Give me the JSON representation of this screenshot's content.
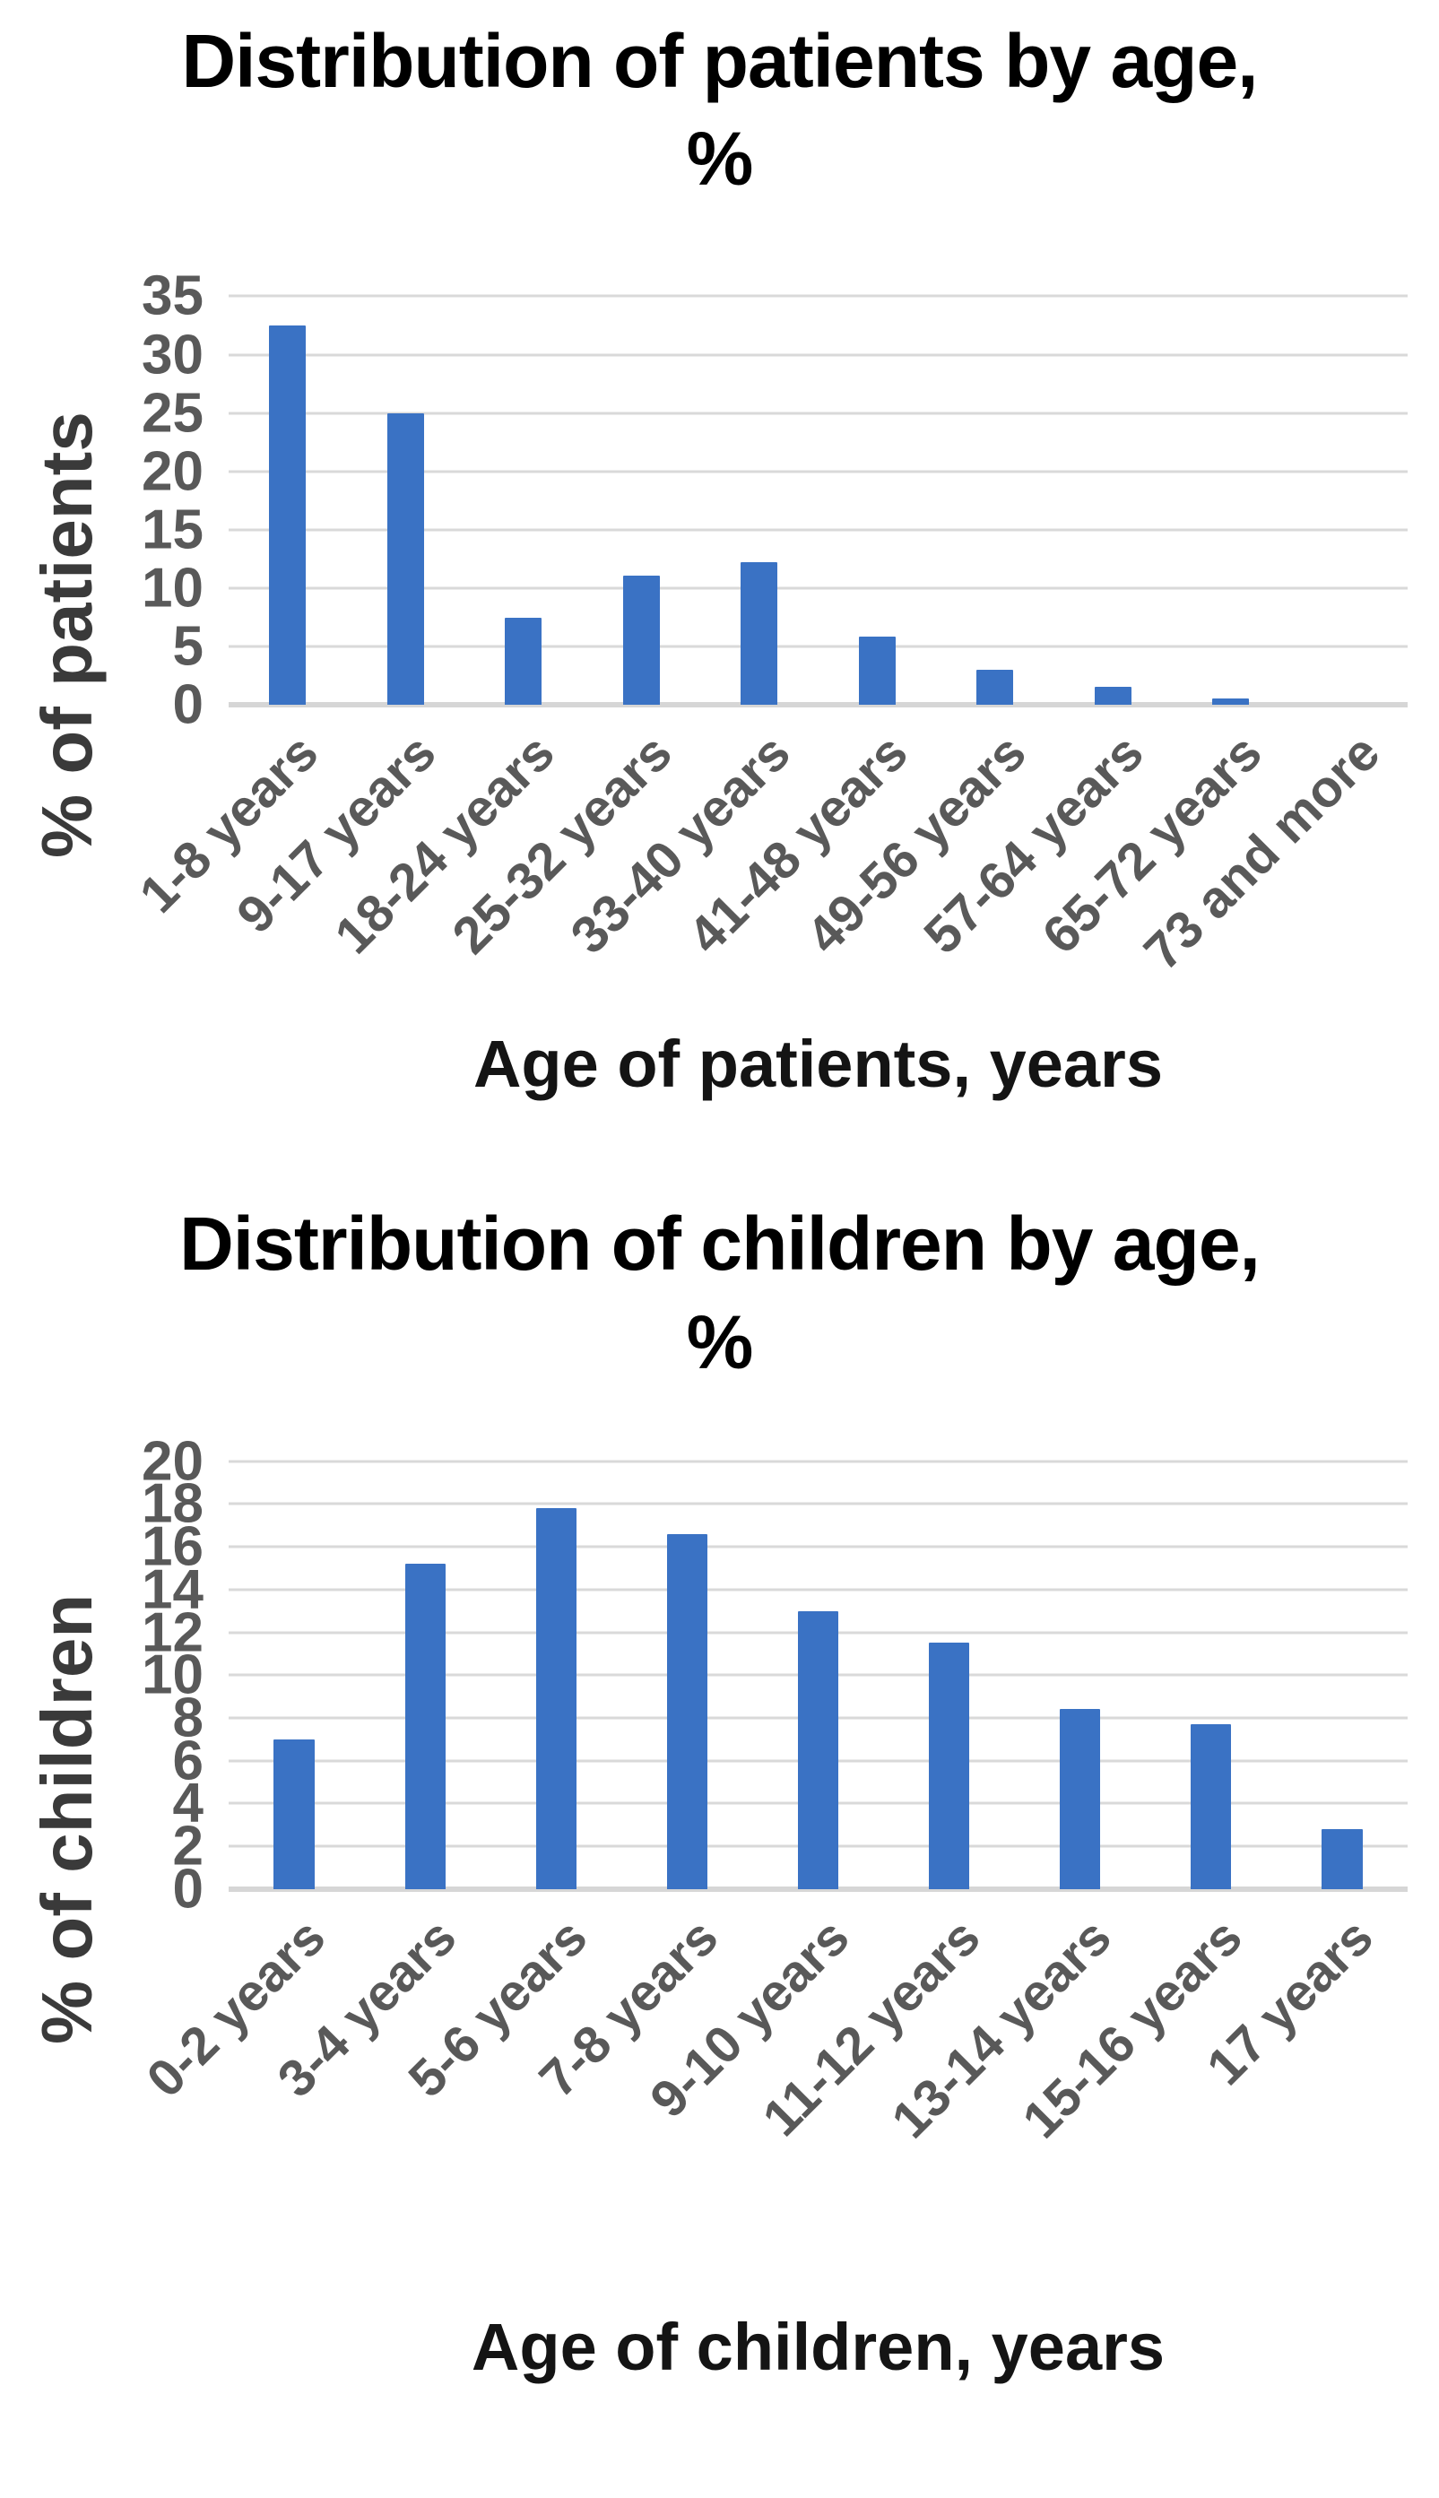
{
  "colors": {
    "bar": "#3a72c4",
    "gridline": "#d9d9d9",
    "axis_line": "#d6d6d6",
    "tick_label": "#595959",
    "axis_title": "#3a3a3a",
    "chart_title": "#000000",
    "background": "#ffffff"
  },
  "chart_data": [
    {
      "type": "bar",
      "title": "Distribution of patients by age, %",
      "title_line1": "Distribution of patients by age,",
      "title_line2": "%",
      "categories": [
        "1-8 years",
        "9-17 years",
        "18-24 years",
        "25-32 years",
        "33-40 years",
        "41-48 years",
        "49-56 years",
        "57-64 years",
        "65-72 years",
        "73 and more"
      ],
      "values": [
        32.5,
        25,
        7.5,
        11.1,
        12.2,
        5.9,
        3,
        1.6,
        0.6,
        0
      ],
      "xlabel": "Age of patients, years",
      "ylabel": "% of patients",
      "ylim": [
        0,
        35
      ],
      "ytick_step": 5,
      "ytick_labels": [
        "0",
        "5",
        "10",
        "15",
        "20",
        "25",
        "30",
        "35"
      ],
      "grid": true,
      "legend": false,
      "bar_color": "#3a72c4"
    },
    {
      "type": "bar",
      "title": "Distribution of children by age, %",
      "title_line1": "Distribution of children by age,",
      "title_line2": "%",
      "categories": [
        "0-2 years",
        "3-4 years",
        "5-6 years",
        "7-8 years",
        "9-10 years",
        "11-12 years",
        "13-14 years",
        "15-16 years",
        "17 years"
      ],
      "values": [
        7,
        15.2,
        17.8,
        16.6,
        13,
        11.5,
        8.4,
        7.7,
        2.8
      ],
      "xlabel": "Age of children, years",
      "ylabel": "% of children",
      "ylim": [
        0,
        20
      ],
      "ytick_step": 2,
      "ytick_labels": [
        "0",
        "2",
        "4",
        "6",
        "8",
        "10",
        "12",
        "14",
        "16",
        "18",
        "20"
      ],
      "grid": true,
      "legend": false,
      "bar_color": "#3a72c4"
    }
  ]
}
